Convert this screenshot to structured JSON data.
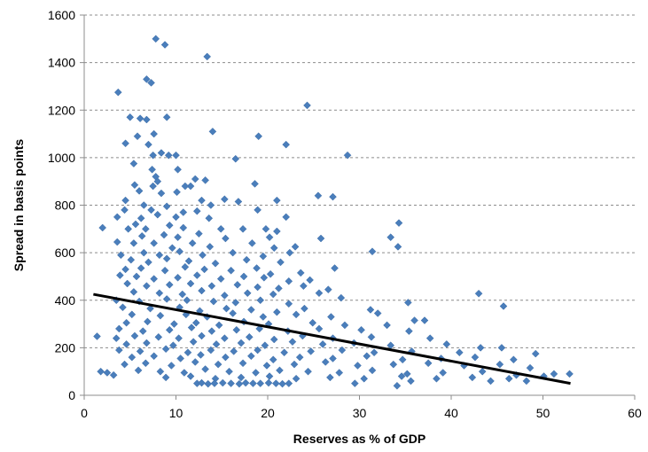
{
  "chart_data": {
    "type": "scatter",
    "xlabel": "Reserves as % of GDP",
    "ylabel": "Spread in basis points",
    "xlim": [
      0,
      60
    ],
    "ylim": [
      0,
      1600
    ],
    "x_ticks": [
      0,
      10,
      20,
      30,
      40,
      50,
      60
    ],
    "y_ticks": [
      0,
      200,
      400,
      600,
      800,
      1000,
      1200,
      1400,
      1600
    ],
    "grid": "horizontal dashed",
    "legend": "none",
    "marker": "diamond",
    "colors": {
      "points": "#4a7ebb",
      "trendline": "#000000"
    },
    "trendline": {
      "x": [
        1,
        53
      ],
      "y": [
        425,
        50
      ]
    },
    "series": [
      {
        "points": [
          [
            7.8,
            1500
          ],
          [
            8.8,
            1475
          ],
          [
            13.4,
            1425
          ],
          [
            6.8,
            1330
          ],
          [
            7.3,
            1315
          ],
          [
            3.7,
            1275
          ],
          [
            24.3,
            1220
          ],
          [
            5,
            1170
          ],
          [
            6.1,
            1165
          ],
          [
            9,
            1170
          ],
          [
            6.8,
            1160
          ],
          [
            14,
            1110
          ],
          [
            7.6,
            1100
          ],
          [
            19,
            1090
          ],
          [
            5.8,
            1090
          ],
          [
            22,
            1055
          ],
          [
            4.5,
            1060
          ],
          [
            7,
            1055
          ],
          [
            7.5,
            1010
          ],
          [
            28.7,
            1010
          ],
          [
            9.2,
            1010
          ],
          [
            10,
            1010
          ],
          [
            8.4,
            1020
          ],
          [
            16.5,
            995
          ],
          [
            5.4,
            975
          ],
          [
            7.4,
            950
          ],
          [
            10.2,
            950
          ],
          [
            7.8,
            920
          ],
          [
            12.1,
            910
          ],
          [
            13.2,
            905
          ],
          [
            5.5,
            885
          ],
          [
            7.5,
            880
          ],
          [
            8,
            900
          ],
          [
            18.6,
            890
          ],
          [
            11.6,
            880
          ],
          [
            6,
            860
          ],
          [
            8.4,
            850
          ],
          [
            10.1,
            855
          ],
          [
            11,
            880
          ],
          [
            25.5,
            840
          ],
          [
            27.1,
            835
          ],
          [
            4.5,
            820
          ],
          [
            12.8,
            820
          ],
          [
            15.3,
            825
          ],
          [
            16.8,
            815
          ],
          [
            21,
            820
          ],
          [
            6.5,
            800
          ],
          [
            9,
            795
          ],
          [
            13.8,
            800
          ],
          [
            4.4,
            780
          ],
          [
            7.3,
            780
          ],
          [
            10.8,
            770
          ],
          [
            12.3,
            775
          ],
          [
            18.9,
            780
          ],
          [
            3.6,
            750
          ],
          [
            6.2,
            745
          ],
          [
            8,
            760
          ],
          [
            10,
            750
          ],
          [
            13.6,
            745
          ],
          [
            22,
            750
          ],
          [
            5.6,
            720
          ],
          [
            9.3,
            715
          ],
          [
            14.9,
            700
          ],
          [
            34.3,
            725
          ],
          [
            2,
            705
          ],
          [
            4.8,
            700
          ],
          [
            6.7,
            700
          ],
          [
            10.8,
            705
          ],
          [
            17.3,
            700
          ],
          [
            19.8,
            700
          ],
          [
            21,
            690
          ],
          [
            6.3,
            670
          ],
          [
            8.7,
            675
          ],
          [
            10.2,
            665
          ],
          [
            12.5,
            680
          ],
          [
            15.4,
            660
          ],
          [
            20.2,
            665
          ],
          [
            25.8,
            660
          ],
          [
            33.4,
            665
          ],
          [
            3.6,
            645
          ],
          [
            5.4,
            640
          ],
          [
            7.6,
            640
          ],
          [
            9.6,
            620
          ],
          [
            11.8,
            640
          ],
          [
            13.7,
            625
          ],
          [
            18.3,
            640
          ],
          [
            20.7,
            620
          ],
          [
            23,
            625
          ],
          [
            34.2,
            625
          ],
          [
            4,
            590
          ],
          [
            6.5,
            600
          ],
          [
            8.2,
            590
          ],
          [
            10.4,
            605
          ],
          [
            12.9,
            590
          ],
          [
            16.2,
            600
          ],
          [
            19.5,
            585
          ],
          [
            22.4,
            600
          ],
          [
            31.4,
            605
          ],
          [
            5.1,
            570
          ],
          [
            7,
            560
          ],
          [
            9,
            575
          ],
          [
            11.4,
            565
          ],
          [
            14.3,
            555
          ],
          [
            17.7,
            570
          ],
          [
            21.4,
            560
          ],
          [
            27.3,
            535
          ],
          [
            4.5,
            530
          ],
          [
            6.2,
            535
          ],
          [
            8.8,
            525
          ],
          [
            11,
            540
          ],
          [
            13.1,
            530
          ],
          [
            16,
            525
          ],
          [
            18.8,
            535
          ],
          [
            20.3,
            510
          ],
          [
            23.6,
            515
          ],
          [
            3.9,
            505
          ],
          [
            5.7,
            500
          ],
          [
            7.6,
            490
          ],
          [
            10.2,
            495
          ],
          [
            12.3,
            505
          ],
          [
            14.9,
            490
          ],
          [
            17.4,
            500
          ],
          [
            19.6,
            495
          ],
          [
            22.3,
            480
          ],
          [
            24.6,
            485
          ],
          [
            4.7,
            470
          ],
          [
            6.8,
            460
          ],
          [
            9.3,
            465
          ],
          [
            11.6,
            470
          ],
          [
            13.9,
            460
          ],
          [
            16.7,
            465
          ],
          [
            18.9,
            455
          ],
          [
            21.2,
            450
          ],
          [
            23.9,
            460
          ],
          [
            26.6,
            445
          ],
          [
            5.4,
            435
          ],
          [
            8.2,
            430
          ],
          [
            10.7,
            425
          ],
          [
            12.8,
            440
          ],
          [
            15.3,
            420
          ],
          [
            17.8,
            430
          ],
          [
            20.6,
            425
          ],
          [
            25.6,
            430
          ],
          [
            43,
            428
          ],
          [
            3.5,
            400
          ],
          [
            6,
            395
          ],
          [
            9,
            405
          ],
          [
            11.2,
            400
          ],
          [
            14.1,
            395
          ],
          [
            16.5,
            390
          ],
          [
            19.2,
            400
          ],
          [
            22.3,
            385
          ],
          [
            28,
            410
          ],
          [
            35.3,
            390
          ],
          [
            4.2,
            370
          ],
          [
            7.2,
            365
          ],
          [
            10.4,
            370
          ],
          [
            12.6,
            355
          ],
          [
            15.5,
            365
          ],
          [
            18.2,
            360
          ],
          [
            21,
            350
          ],
          [
            24,
            365
          ],
          [
            31.2,
            360
          ],
          [
            45.7,
            375
          ],
          [
            5.2,
            340
          ],
          [
            8.3,
            335
          ],
          [
            11.1,
            340
          ],
          [
            13.4,
            330
          ],
          [
            16.2,
            345
          ],
          [
            19.5,
            330
          ],
          [
            23.1,
            340
          ],
          [
            26.9,
            330
          ],
          [
            32,
            345
          ],
          [
            36,
            315
          ],
          [
            37.1,
            315
          ],
          [
            4.6,
            305
          ],
          [
            6.9,
            310
          ],
          [
            9.8,
            300
          ],
          [
            12.2,
            305
          ],
          [
            14.7,
            295
          ],
          [
            17.4,
            310
          ],
          [
            20.1,
            300
          ],
          [
            24.9,
            305
          ],
          [
            28.4,
            295
          ],
          [
            33,
            295
          ],
          [
            3.8,
            280
          ],
          [
            6.4,
            270
          ],
          [
            9.3,
            275
          ],
          [
            11.7,
            285
          ],
          [
            13.9,
            270
          ],
          [
            16.6,
            275
          ],
          [
            19.1,
            280
          ],
          [
            22.2,
            270
          ],
          [
            25.6,
            280
          ],
          [
            30.2,
            275
          ],
          [
            35.4,
            270
          ],
          [
            1.4,
            248
          ],
          [
            3.5,
            240
          ],
          [
            5.5,
            250
          ],
          [
            8.1,
            245
          ],
          [
            10.3,
            240
          ],
          [
            12.8,
            250
          ],
          [
            15.3,
            240
          ],
          [
            18,
            245
          ],
          [
            20.7,
            235
          ],
          [
            23.8,
            250
          ],
          [
            27.1,
            240
          ],
          [
            31.3,
            245
          ],
          [
            37.7,
            240
          ],
          [
            4.6,
            215
          ],
          [
            6.8,
            220
          ],
          [
            9.7,
            210
          ],
          [
            11.9,
            225
          ],
          [
            14.4,
            215
          ],
          [
            17.1,
            220
          ],
          [
            19.7,
            210
          ],
          [
            22.7,
            225
          ],
          [
            26,
            215
          ],
          [
            29.4,
            220
          ],
          [
            33.4,
            210
          ],
          [
            39.5,
            215
          ],
          [
            43.2,
            200
          ],
          [
            3.8,
            190
          ],
          [
            6.1,
            185
          ],
          [
            8.9,
            195
          ],
          [
            11.3,
            180
          ],
          [
            13.8,
            190
          ],
          [
            16.3,
            185
          ],
          [
            18.9,
            190
          ],
          [
            21.8,
            180
          ],
          [
            24.7,
            185
          ],
          [
            28.1,
            190
          ],
          [
            31.6,
            180
          ],
          [
            35.7,
            185
          ],
          [
            40.9,
            180
          ],
          [
            45.5,
            200
          ],
          [
            49.2,
            175
          ],
          [
            5.2,
            160
          ],
          [
            7.6,
            165
          ],
          [
            10.5,
            155
          ],
          [
            12.7,
            170
          ],
          [
            15.4,
            160
          ],
          [
            18.2,
            165
          ],
          [
            20.6,
            150
          ],
          [
            23.5,
            160
          ],
          [
            27.1,
            155
          ],
          [
            30.8,
            165
          ],
          [
            34.7,
            150
          ],
          [
            38.9,
            155
          ],
          [
            42.6,
            160
          ],
          [
            46.8,
            150
          ],
          [
            4.4,
            130
          ],
          [
            6.7,
            135
          ],
          [
            9.5,
            125
          ],
          [
            12.1,
            140
          ],
          [
            14.6,
            130
          ],
          [
            17.3,
            135
          ],
          [
            19.9,
            125
          ],
          [
            22.9,
            130
          ],
          [
            26.3,
            140
          ],
          [
            29.8,
            125
          ],
          [
            33.7,
            130
          ],
          [
            37.5,
            135
          ],
          [
            41.4,
            125
          ],
          [
            45.3,
            130
          ],
          [
            48.6,
            115
          ],
          [
            1.8,
            100
          ],
          [
            2.5,
            95
          ],
          [
            3.2,
            85
          ],
          [
            5.9,
            105
          ],
          [
            8.3,
            100
          ],
          [
            10.9,
            95
          ],
          [
            13.2,
            110
          ],
          [
            15.8,
            100
          ],
          [
            18.7,
            95
          ],
          [
            21.3,
            105
          ],
          [
            24.4,
            100
          ],
          [
            27.8,
            95
          ],
          [
            31.4,
            105
          ],
          [
            35.2,
            90
          ],
          [
            39.1,
            95
          ],
          [
            43.4,
            100
          ],
          [
            47.1,
            85
          ],
          [
            51.2,
            90
          ],
          [
            52.9,
            90
          ],
          [
            8.9,
            75
          ],
          [
            11.6,
            80
          ],
          [
            14.3,
            70
          ],
          [
            17.1,
            75
          ],
          [
            20.2,
            80
          ],
          [
            23.1,
            70
          ],
          [
            26.8,
            75
          ],
          [
            30.5,
            70
          ],
          [
            34.6,
            80
          ],
          [
            38.4,
            70
          ],
          [
            42.3,
            75
          ],
          [
            46.3,
            70
          ],
          [
            50.1,
            80
          ],
          [
            12.3,
            50
          ],
          [
            12.8,
            52
          ],
          [
            13.5,
            48
          ],
          [
            14.2,
            50
          ],
          [
            15.1,
            52
          ],
          [
            16,
            50
          ],
          [
            16.9,
            48
          ],
          [
            17.6,
            52
          ],
          [
            18.4,
            50
          ],
          [
            19.2,
            50
          ],
          [
            20.1,
            52
          ],
          [
            20.9,
            50
          ],
          [
            21.6,
            48
          ],
          [
            22.3,
            50
          ],
          [
            29.5,
            50
          ],
          [
            34.1,
            40
          ],
          [
            35.6,
            60
          ],
          [
            44.3,
            60
          ],
          [
            48.2,
            60
          ]
        ]
      }
    ]
  }
}
